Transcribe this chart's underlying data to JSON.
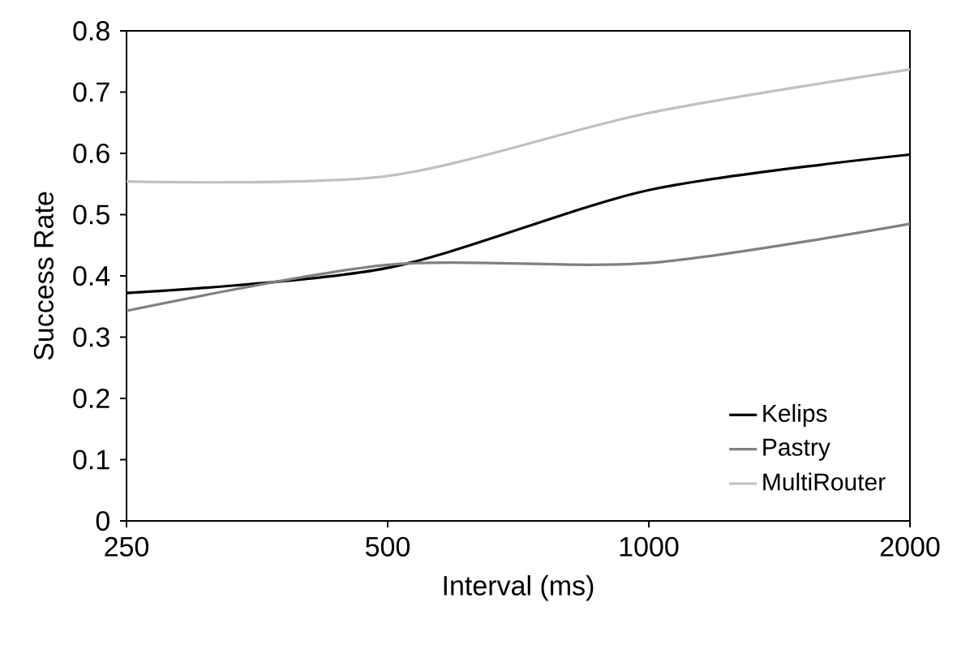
{
  "chart_data": {
    "type": "line",
    "xlabel": "Interval (ms)",
    "ylabel": "Success Rate",
    "categories": [
      "250",
      "500",
      "1000",
      "2000"
    ],
    "series": [
      {
        "name": "Kelips",
        "color": "#000000",
        "values": [
          0.372,
          0.413,
          0.54,
          0.598
        ]
      },
      {
        "name": "Pastry",
        "color": "#808080",
        "values": [
          0.343,
          0.418,
          0.421,
          0.485
        ]
      },
      {
        "name": "MultiRouter",
        "color": "#c0c0c0",
        "values": [
          0.554,
          0.563,
          0.666,
          0.737
        ]
      }
    ],
    "ylim": [
      0,
      0.8
    ],
    "yticks": [
      0,
      0.1,
      0.2,
      0.3,
      0.4,
      0.5,
      0.6,
      0.7,
      0.8
    ],
    "legend": "bottom right",
    "grid": false,
    "marker": "none",
    "line_style": "solid"
  }
}
